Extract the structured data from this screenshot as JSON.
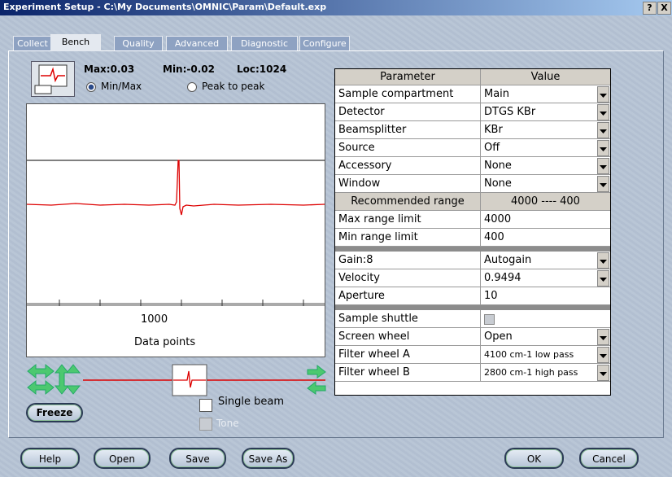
{
  "window": {
    "title": "Experiment Setup - C:\\My Documents\\OMNIC\\Param\\Default.exp",
    "help": "?",
    "close": "X"
  },
  "tabs": [
    "Collect",
    "Bench",
    "Quality",
    "Advanced",
    "Diagnostic",
    "Configure"
  ],
  "active_tab": 1,
  "signal": {
    "max": "Max:0.03",
    "min": "Min:-0.02",
    "loc": "Loc:1024",
    "modes": [
      "Min/Max",
      "Peak to peak"
    ],
    "selected_mode": 0,
    "x_tick": "1000",
    "x_label": "Data points"
  },
  "options": {
    "single_beam": "Single beam",
    "tone": "Tone",
    "freeze": "Freeze"
  },
  "table": {
    "columns": [
      "Parameter",
      "Value"
    ],
    "groups": [
      {
        "rows": [
          {
            "parameter": "Sample compartment",
            "value": "Main",
            "dropdown": true
          },
          {
            "parameter": "Detector",
            "value": "DTGS KBr",
            "dropdown": true
          },
          {
            "parameter": "Beamsplitter",
            "value": "KBr",
            "dropdown": true
          },
          {
            "parameter": "Source",
            "value": "Off",
            "dropdown": true
          },
          {
            "parameter": "Accessory",
            "value": "None",
            "dropdown": true
          },
          {
            "parameter": "Window",
            "value": "None",
            "dropdown": true
          },
          {
            "parameter": "Recommended range",
            "value": "4000 ---- 400",
            "heading": true
          },
          {
            "parameter": "Max range limit",
            "value": "4000"
          },
          {
            "parameter": "Min range limit",
            "value": "400"
          }
        ]
      },
      {
        "rows": [
          {
            "parameter": "Gain:8",
            "value": "Autogain",
            "dropdown": true
          },
          {
            "parameter": "Velocity",
            "value": "0.9494",
            "dropdown": true
          },
          {
            "parameter": "Aperture",
            "value": "10"
          }
        ]
      },
      {
        "rows": [
          {
            "parameter": "Sample shuttle",
            "checkbox": true
          },
          {
            "parameter": "Screen wheel",
            "value": "Open",
            "dropdown": true
          },
          {
            "parameter": "Filter wheel A",
            "value": "4100 cm-1 low pass",
            "dropdown": true
          },
          {
            "parameter": "Filter wheel B",
            "value": "2800 cm-1 high pass",
            "dropdown": true
          }
        ]
      }
    ]
  },
  "buttons": [
    "Help",
    "Open",
    "Save",
    "Save As",
    "OK",
    "Cancel"
  ]
}
